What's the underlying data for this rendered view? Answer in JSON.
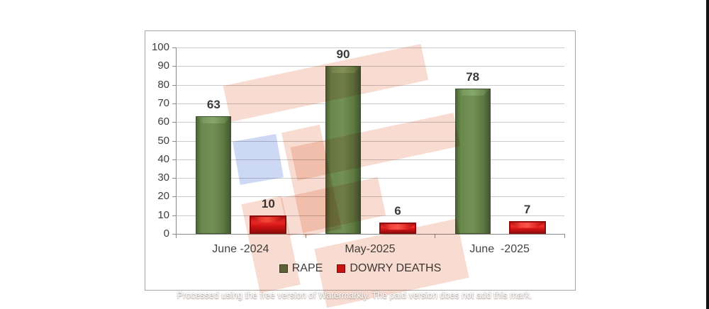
{
  "watermark": {
    "text": "Processed using the free version of Watermarkly. The paid version does not add this mark."
  },
  "colors": {
    "rape_bar": "#5f7c44",
    "dowry_bar": "#d2181b",
    "gridline": "#cacaca",
    "axis": "#8a8a8a",
    "frame_border": "#a6a6a6",
    "watermark_pink": "#f8dcd1",
    "watermark_blue": "#cdd8f4"
  },
  "chart_data": {
    "type": "bar",
    "title": "",
    "xlabel": "",
    "ylabel": "",
    "categories": [
      "June -2024",
      "May-2025",
      "June  -2025"
    ],
    "series": [
      {
        "name": "RAPE",
        "color": "#5f7c44",
        "values": [
          63,
          90,
          78
        ]
      },
      {
        "name": "DOWRY DEATHS",
        "color": "#d2181b",
        "values": [
          10,
          6,
          7
        ]
      }
    ],
    "ylim": [
      0,
      100
    ],
    "yticks": [
      0,
      10,
      20,
      30,
      40,
      50,
      60,
      70,
      80,
      90,
      100
    ],
    "grid": true,
    "legend_position": "bottom",
    "data_labels": true
  }
}
